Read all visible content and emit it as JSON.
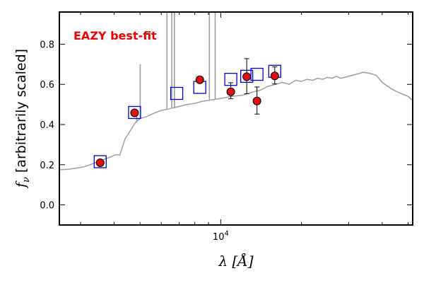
{
  "chart_data": {
    "type": "scatter",
    "title": "",
    "annotation": "EAZY best-fit",
    "xlabel": "λ [Å]",
    "ylabel_prefix": "f",
    "ylabel_sub": "ν",
    "ylabel_rest": " [arbitrarily scaled]",
    "xscale": "log",
    "xlim": [
      2500,
      52000
    ],
    "ylim": [
      -0.1,
      0.96
    ],
    "x_tick_labels": [
      {
        "value": 10000,
        "base": "10",
        "exp": "4"
      }
    ],
    "x_minor_ticks": [
      3000,
      4000,
      5000,
      6000,
      7000,
      8000,
      9000,
      20000,
      30000,
      40000,
      50000
    ],
    "y_ticks": [
      0.0,
      0.2,
      0.4,
      0.6,
      0.8
    ],
    "y_tick_labels": [
      "0.0",
      "0.2",
      "0.4",
      "0.6",
      "0.8"
    ],
    "grid": false,
    "colors": {
      "template": "#9e9e9e",
      "model_box": "#0000dd",
      "observed": "#dd1111",
      "annotation": "#ee0000"
    },
    "series": [
      {
        "type": "line",
        "x": [
          2500,
          2700,
          2900,
          3100,
          3300,
          3500,
          3700,
          3900,
          4050,
          4200,
          4400,
          4600,
          4800,
          5000,
          5300,
          5600,
          6000,
          6500,
          7000,
          7500,
          8000,
          8500,
          9000,
          9500,
          10000,
          11000,
          12000,
          13000,
          14000,
          15000,
          16000,
          17000,
          18000,
          19000,
          20000,
          21000,
          22000,
          23000,
          24000,
          25000,
          26000,
          27000,
          28000,
          30000,
          32000,
          34000,
          36000,
          38000,
          40000,
          43000,
          46000,
          50000,
          52000
        ],
        "y": [
          0.175,
          0.177,
          0.183,
          0.19,
          0.203,
          0.218,
          0.228,
          0.24,
          0.25,
          0.248,
          0.33,
          0.37,
          0.41,
          0.43,
          0.44,
          0.455,
          0.47,
          0.48,
          0.49,
          0.5,
          0.505,
          0.515,
          0.52,
          0.525,
          0.53,
          0.54,
          0.545,
          0.56,
          0.57,
          0.59,
          0.6,
          0.61,
          0.6,
          0.62,
          0.615,
          0.625,
          0.62,
          0.63,
          0.625,
          0.635,
          0.63,
          0.64,
          0.63,
          0.64,
          0.65,
          0.66,
          0.655,
          0.645,
          0.61,
          0.58,
          0.56,
          0.54,
          0.52
        ]
      },
      {
        "type": "spikes",
        "lines": [
          {
            "x": 4861,
            "y": 0.45
          },
          {
            "x": 5007,
            "y": 0.7
          },
          {
            "x": 6300,
            "y": 0.96
          },
          {
            "x": 6563,
            "y": 0.96
          },
          {
            "x": 6717,
            "y": 0.96
          },
          {
            "x": 9069,
            "y": 0.96
          },
          {
            "x": 9531,
            "y": 0.96
          }
        ]
      },
      {
        "type": "scatter",
        "marker": "square",
        "x": [
          3550,
          4770,
          6850,
          8350,
          10900,
          12500,
          13650,
          15900
        ],
        "y": [
          0.215,
          0.46,
          0.555,
          0.585,
          0.625,
          0.64,
          0.65,
          0.665
        ]
      },
      {
        "type": "scatter",
        "marker": "circle",
        "x": [
          3550,
          4770,
          8350,
          10900,
          12500,
          13650,
          15900
        ],
        "y": [
          0.21,
          0.458,
          0.623,
          0.563,
          0.638,
          0.517,
          0.642
        ],
        "err_low": [
          0.0,
          0.0,
          0.0,
          0.035,
          0.085,
          0.065,
          0.04
        ],
        "err_high": [
          0.0,
          0.0,
          0.0,
          0.045,
          0.09,
          0.07,
          0.045
        ]
      }
    ]
  }
}
